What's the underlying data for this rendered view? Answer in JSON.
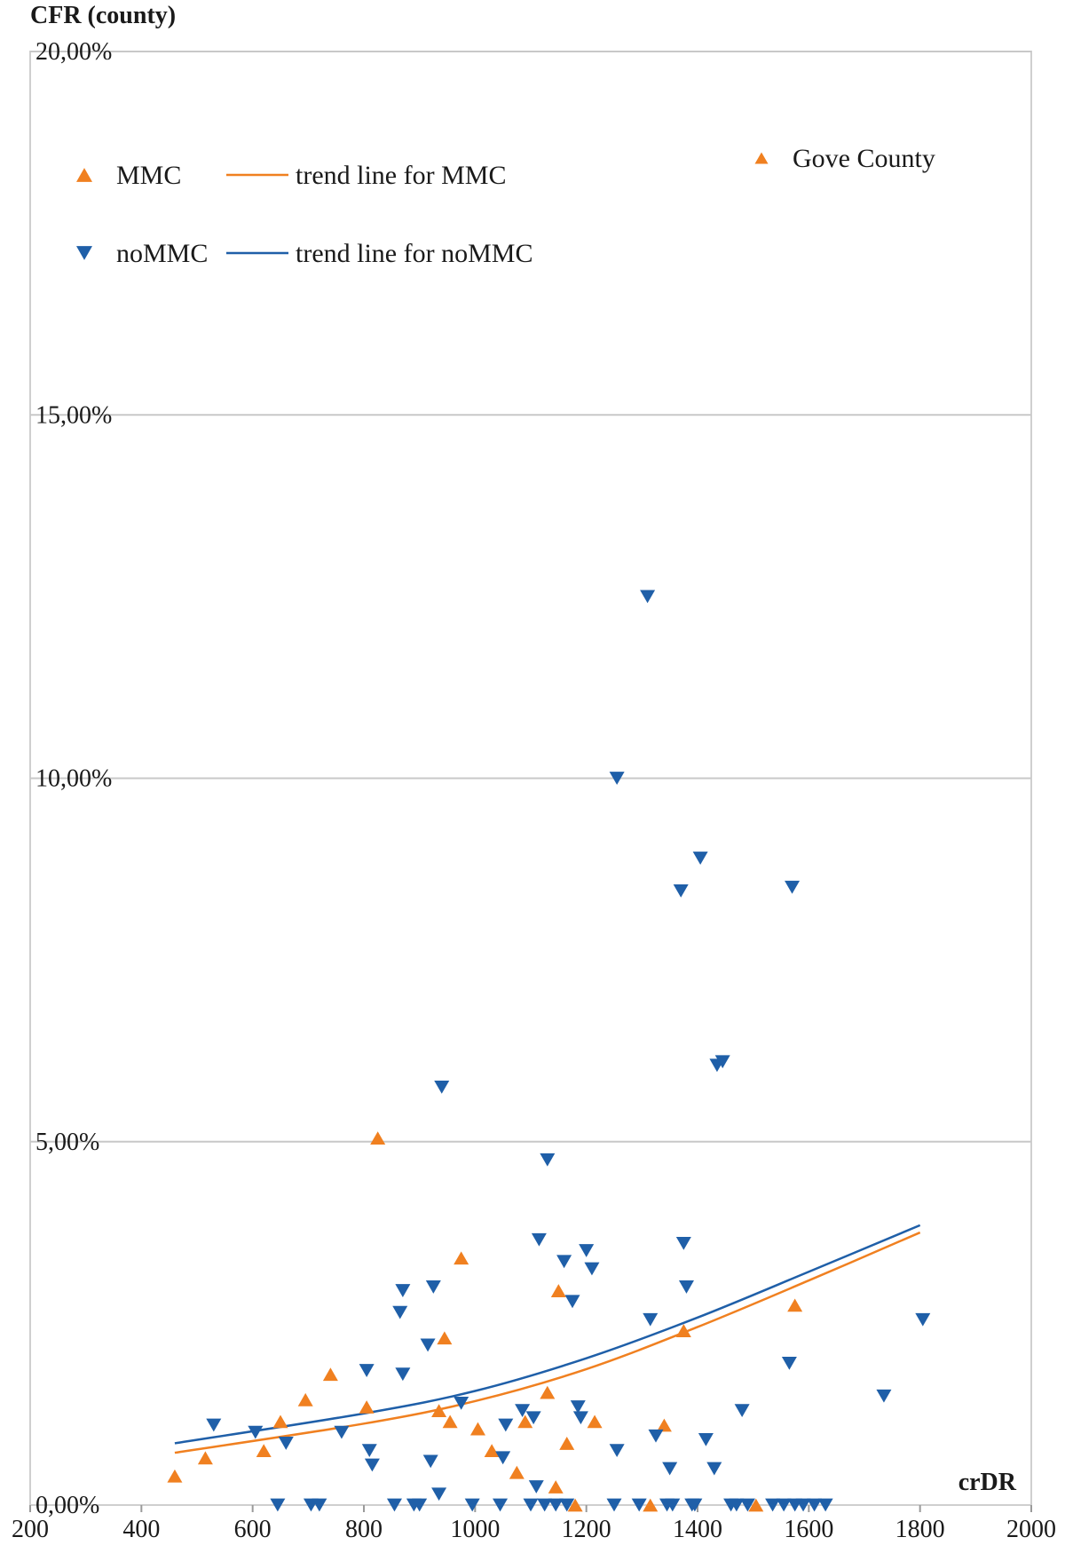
{
  "chart_data": {
    "type": "scatter",
    "title": "",
    "ylabel": "CFR (county)",
    "xlabel": "crDR",
    "xlim": [
      200,
      2000
    ],
    "ylim": [
      0,
      20
    ],
    "x_ticks": [
      200,
      400,
      600,
      800,
      1000,
      1200,
      1400,
      1600,
      1800,
      2000
    ],
    "x_tick_labels": [
      "200",
      "400",
      "600",
      "800",
      "1000",
      "1200",
      "1400",
      "1600",
      "1800",
      "2000"
    ],
    "y_ticks": [
      0,
      5,
      10,
      15,
      20
    ],
    "y_tick_labels": [
      "0,00%",
      "5,00%",
      "10,00%",
      "15,00%",
      "20,00%"
    ],
    "grid": "horizontal",
    "legend_position": "top-left",
    "colors": {
      "MMC": "#F08020",
      "noMMC": "#1F5FA8",
      "gridline": "#c8c8c8",
      "frame": "#cfcfcf"
    },
    "series": [
      {
        "name": "MMC",
        "marker": "triangle-up",
        "color": "#F08020",
        "points": [
          [
            460,
            0.4
          ],
          [
            515,
            0.65
          ],
          [
            620,
            0.75
          ],
          [
            650,
            1.15
          ],
          [
            695,
            1.45
          ],
          [
            740,
            1.8
          ],
          [
            805,
            1.35
          ],
          [
            825,
            5.05
          ],
          [
            935,
            1.3
          ],
          [
            945,
            2.3
          ],
          [
            955,
            1.15
          ],
          [
            975,
            3.4
          ],
          [
            1005,
            1.05
          ],
          [
            1030,
            0.75
          ],
          [
            1075,
            0.45
          ],
          [
            1090,
            1.15
          ],
          [
            1130,
            1.55
          ],
          [
            1145,
            0.25
          ],
          [
            1150,
            2.95
          ],
          [
            1165,
            0.85
          ],
          [
            1180,
            0.0
          ],
          [
            1215,
            1.15
          ],
          [
            1315,
            0.0
          ],
          [
            1340,
            1.1
          ],
          [
            1375,
            2.4
          ],
          [
            1505,
            0.0
          ],
          [
            1575,
            2.75
          ]
        ]
      },
      {
        "name": "noMMC",
        "marker": "triangle-down",
        "color": "#1F5FA8",
        "points": [
          [
            530,
            1.1
          ],
          [
            605,
            1.0
          ],
          [
            645,
            0.0
          ],
          [
            660,
            0.85
          ],
          [
            705,
            0.0
          ],
          [
            720,
            0.0
          ],
          [
            760,
            1.0
          ],
          [
            805,
            1.85
          ],
          [
            810,
            0.75
          ],
          [
            815,
            0.55
          ],
          [
            855,
            0.0
          ],
          [
            865,
            2.65
          ],
          [
            870,
            2.95
          ],
          [
            870,
            1.8
          ],
          [
            890,
            0.0
          ],
          [
            900,
            0.0
          ],
          [
            915,
            2.2
          ],
          [
            920,
            0.6
          ],
          [
            925,
            3.0
          ],
          [
            935,
            0.15
          ],
          [
            940,
            5.75
          ],
          [
            975,
            1.4
          ],
          [
            995,
            0.0
          ],
          [
            1045,
            0.0
          ],
          [
            1050,
            0.65
          ],
          [
            1055,
            1.1
          ],
          [
            1085,
            1.3
          ],
          [
            1100,
            0.0
          ],
          [
            1105,
            1.2
          ],
          [
            1110,
            0.25
          ],
          [
            1115,
            3.65
          ],
          [
            1125,
            0.0
          ],
          [
            1130,
            4.75
          ],
          [
            1145,
            0.0
          ],
          [
            1160,
            3.35
          ],
          [
            1165,
            0.0
          ],
          [
            1175,
            2.8
          ],
          [
            1185,
            1.35
          ],
          [
            1190,
            1.2
          ],
          [
            1200,
            3.5
          ],
          [
            1210,
            3.25
          ],
          [
            1250,
            0.0
          ],
          [
            1255,
            0.75
          ],
          [
            1255,
            10.0
          ],
          [
            1295,
            0.0
          ],
          [
            1310,
            12.5
          ],
          [
            1315,
            2.55
          ],
          [
            1325,
            0.95
          ],
          [
            1345,
            0.0
          ],
          [
            1350,
            0.5
          ],
          [
            1355,
            0.0
          ],
          [
            1370,
            8.45
          ],
          [
            1375,
            3.6
          ],
          [
            1380,
            3.0
          ],
          [
            1390,
            0.0
          ],
          [
            1395,
            0.0
          ],
          [
            1405,
            8.9
          ],
          [
            1415,
            0.9
          ],
          [
            1430,
            0.5
          ],
          [
            1435,
            6.05
          ],
          [
            1445,
            6.1
          ],
          [
            1460,
            0.0
          ],
          [
            1470,
            0.0
          ],
          [
            1480,
            1.3
          ],
          [
            1490,
            0.0
          ],
          [
            1535,
            0.0
          ],
          [
            1555,
            0.0
          ],
          [
            1565,
            1.95
          ],
          [
            1570,
            8.5
          ],
          [
            1575,
            0.0
          ],
          [
            1590,
            0.0
          ],
          [
            1610,
            0.0
          ],
          [
            1630,
            0.0
          ],
          [
            1735,
            1.5
          ],
          [
            1805,
            2.55
          ]
        ]
      },
      {
        "name": "trend line for MMC",
        "type": "line",
        "color": "#F08020",
        "points": [
          [
            460,
            0.72
          ],
          [
            800,
            1.12
          ],
          [
            1000,
            1.43
          ],
          [
            1200,
            1.87
          ],
          [
            1400,
            2.45
          ],
          [
            1600,
            3.09
          ],
          [
            1800,
            3.75
          ]
        ]
      },
      {
        "name": "trend line for noMMC",
        "type": "line",
        "color": "#1F5FA8",
        "points": [
          [
            460,
            0.85
          ],
          [
            800,
            1.26
          ],
          [
            1000,
            1.57
          ],
          [
            1200,
            2.02
          ],
          [
            1400,
            2.58
          ],
          [
            1600,
            3.21
          ],
          [
            1800,
            3.85
          ]
        ]
      }
    ],
    "annotation": {
      "marker": "triangle-up",
      "color": "#F08020",
      "label": "Gove County"
    },
    "legend": [
      {
        "label": "MMC",
        "marker": "triangle-up",
        "color": "#F08020"
      },
      {
        "label": "trend line for MMC",
        "marker": "line",
        "color": "#F08020"
      },
      {
        "label": "noMMC",
        "marker": "triangle-down",
        "color": "#1F5FA8"
      },
      {
        "label": "trend line for noMMC",
        "marker": "line",
        "color": "#1F5FA8"
      }
    ]
  }
}
